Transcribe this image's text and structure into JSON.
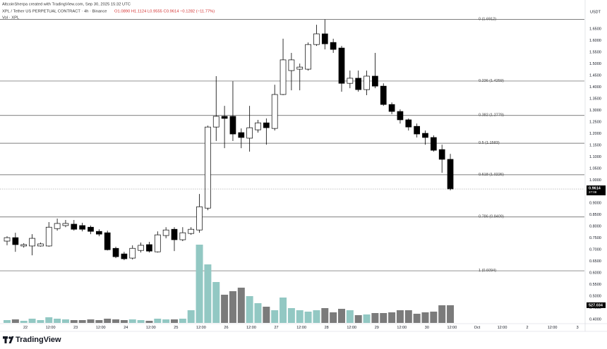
{
  "chart_data": {
    "type": "candlestick",
    "title": "AltcoinSherpa created with TradingView.com, Sep 30, 2025 15:32 UTC",
    "subtitle": "XPL / Tether US PERPETUAL CONTRACT · 4h · Binance",
    "ohlc_text": "O1.0890 H1.1124 L0.9555 C0.9614 −0.1282 (−11.77%)",
    "volume_title": "Vol · XPL",
    "y_unit": "USDT",
    "countdown": "27:08",
    "brand": "TradingView",
    "up_color": "#ffffff",
    "down_color": "#000000",
    "wick_color": "#000000",
    "volume_up_color": "#92c8c3",
    "volume_down_color": "#7b7b7b",
    "fib_color": "#555555",
    "fib_label_color": "#444444",
    "ylim": [
      0.379,
      1.72
    ],
    "xlim": [
      -0.844,
      69.03
    ],
    "yticks": [
      {
        "value": 0.4,
        "label": "0.4000"
      },
      {
        "value": 0.45,
        "label": "0.4500"
      },
      {
        "value": 0.5,
        "label": "0.5000"
      },
      {
        "value": 0.55,
        "label": "0.5500"
      },
      {
        "value": 0.6,
        "label": "0.6000"
      },
      {
        "value": 0.65,
        "label": "0.6500"
      },
      {
        "value": 0.7,
        "label": "0.7000"
      },
      {
        "value": 0.75,
        "label": "0.7500"
      },
      {
        "value": 0.8,
        "label": "0.8000"
      },
      {
        "value": 0.85,
        "label": "0.8500"
      },
      {
        "value": 0.9,
        "label": "0.9000"
      },
      {
        "value": 1.0,
        "label": "1.0000"
      },
      {
        "value": 1.05,
        "label": "1.0500"
      },
      {
        "value": 1.1,
        "label": "1.1000"
      },
      {
        "value": 1.15,
        "label": "1.1500"
      },
      {
        "value": 1.2,
        "label": "1.2000"
      },
      {
        "value": 1.25,
        "label": "1.2500"
      },
      {
        "value": 1.3,
        "label": "1.3000"
      },
      {
        "value": 1.35,
        "label": "1.3500"
      },
      {
        "value": 1.4,
        "label": "1.4000"
      },
      {
        "value": 1.45,
        "label": "1.4500"
      },
      {
        "value": 1.5,
        "label": "1.5000"
      },
      {
        "value": 1.55,
        "label": "1.5500"
      },
      {
        "value": 1.6,
        "label": "1.6000"
      },
      {
        "value": 1.65,
        "label": "1.6500"
      }
    ],
    "xticks": [
      {
        "value": 2.2,
        "label": "22"
      },
      {
        "value": 5.2,
        "label": "12:00"
      },
      {
        "value": 8.2,
        "label": "23"
      },
      {
        "value": 11.2,
        "label": "12:00"
      },
      {
        "value": 14.2,
        "label": "24"
      },
      {
        "value": 17.2,
        "label": "12:00"
      },
      {
        "value": 20.2,
        "label": "25"
      },
      {
        "value": 23.2,
        "label": "12:00"
      },
      {
        "value": 26.2,
        "label": "26"
      },
      {
        "value": 29.2,
        "label": "12:00"
      },
      {
        "value": 32.2,
        "label": "27"
      },
      {
        "value": 35.2,
        "label": "12:00"
      },
      {
        "value": 38.2,
        "label": "28"
      },
      {
        "value": 41.2,
        "label": "12:00"
      },
      {
        "value": 44.2,
        "label": "29"
      },
      {
        "value": 47.2,
        "label": "12:00"
      },
      {
        "value": 50.2,
        "label": "30"
      },
      {
        "value": 53.2,
        "label": "12:00"
      },
      {
        "value": 56.2,
        "label": "Oct"
      },
      {
        "value": 59.2,
        "label": "12:00"
      },
      {
        "value": 62.2,
        "label": "2"
      },
      {
        "value": 65.2,
        "label": "12:00"
      },
      {
        "value": 68.2,
        "label": "3"
      }
    ],
    "fib_levels": [
      {
        "value": 1.6912,
        "label": "0 (1.6912)"
      },
      {
        "value": 1.4259,
        "label": "0.236 (1.4259)"
      },
      {
        "value": 1.2779,
        "label": "0.382 (1.2779)"
      },
      {
        "value": 1.1583,
        "label": "0.5 (1.1583)"
      },
      {
        "value": 1.0226,
        "label": "0.618 (1.0226)"
      },
      {
        "value": 0.8409,
        "label": "0.786 (0.8409)"
      },
      {
        "value": 0.6094,
        "label": "1 (0.6094)"
      }
    ],
    "open": [
      0.737,
      0.752,
      0.716,
      0.716,
      0.716,
      0.716,
      0.791,
      0.804,
      0.81,
      0.804,
      0.797,
      0.779,
      0.773,
      0.706,
      0.682,
      0.664,
      0.697,
      0.722,
      0.691,
      0.761,
      0.788,
      0.743,
      0.77,
      0.785,
      0.879,
      1.228,
      1.274,
      1.274,
      1.204,
      1.18,
      1.216,
      1.246,
      1.222,
      1.368,
      1.471,
      1.477,
      1.477,
      1.583,
      1.629,
      1.592,
      1.568,
      1.416,
      1.438,
      1.389,
      1.447,
      1.404,
      1.325,
      1.295,
      1.259,
      1.231,
      1.201,
      1.183,
      1.131,
      1.089
    ],
    "high": [
      0.758,
      0.773,
      0.728,
      0.767,
      0.731,
      0.819,
      0.834,
      0.828,
      0.828,
      0.816,
      0.804,
      0.788,
      0.782,
      0.713,
      0.691,
      0.719,
      0.731,
      0.734,
      0.779,
      0.797,
      0.797,
      0.797,
      0.797,
      0.94,
      1.234,
      1.447,
      1.319,
      1.425,
      1.222,
      1.319,
      1.259,
      1.265,
      1.41,
      1.608,
      1.547,
      1.501,
      1.592,
      1.668,
      1.6912,
      1.608,
      1.577,
      1.471,
      1.471,
      1.471,
      1.547,
      1.416,
      1.334,
      1.304,
      1.265,
      1.243,
      1.213,
      1.192,
      1.152,
      1.1124
    ],
    "low": [
      0.719,
      0.691,
      0.709,
      0.676,
      0.713,
      0.713,
      0.782,
      0.797,
      0.782,
      0.779,
      0.767,
      0.758,
      0.697,
      0.664,
      0.655,
      0.658,
      0.688,
      0.688,
      0.688,
      0.749,
      0.694,
      0.737,
      0.764,
      0.773,
      0.87,
      1.168,
      1.137,
      1.168,
      1.137,
      1.122,
      1.204,
      1.152,
      1.213,
      1.365,
      1.386,
      1.386,
      1.471,
      1.577,
      1.562,
      1.547,
      1.38,
      1.395,
      1.38,
      1.365,
      1.395,
      1.319,
      1.283,
      1.243,
      1.213,
      1.183,
      1.152,
      1.122,
      1.031,
      0.9555
    ],
    "close": [
      0.752,
      0.722,
      0.722,
      0.749,
      0.725,
      0.797,
      0.813,
      0.813,
      0.788,
      0.788,
      0.779,
      0.767,
      0.7,
      0.67,
      0.661,
      0.706,
      0.719,
      0.694,
      0.764,
      0.785,
      0.743,
      0.773,
      0.788,
      0.885,
      1.228,
      1.274,
      1.265,
      1.198,
      1.183,
      1.225,
      1.246,
      1.225,
      1.368,
      1.517,
      1.517,
      1.486,
      1.583,
      1.629,
      1.586,
      1.562,
      1.416,
      1.438,
      1.389,
      1.447,
      1.404,
      1.325,
      1.295,
      1.259,
      1.228,
      1.198,
      1.183,
      1.128,
      1.089,
      0.9614
    ],
    "volume": [
      84,
      105,
      63,
      126,
      84,
      168,
      126,
      105,
      84,
      84,
      105,
      84,
      126,
      105,
      84,
      105,
      84,
      63,
      126,
      105,
      105,
      126,
      378,
      2331,
      1743,
      1218,
      840,
      945,
      1050,
      798,
      588,
      483,
      378,
      756,
      441,
      378,
      336,
      378,
      441,
      315,
      420,
      378,
      231,
      252,
      294,
      294,
      315,
      378,
      378,
      273,
      315,
      336,
      525,
      527.034
    ]
  }
}
